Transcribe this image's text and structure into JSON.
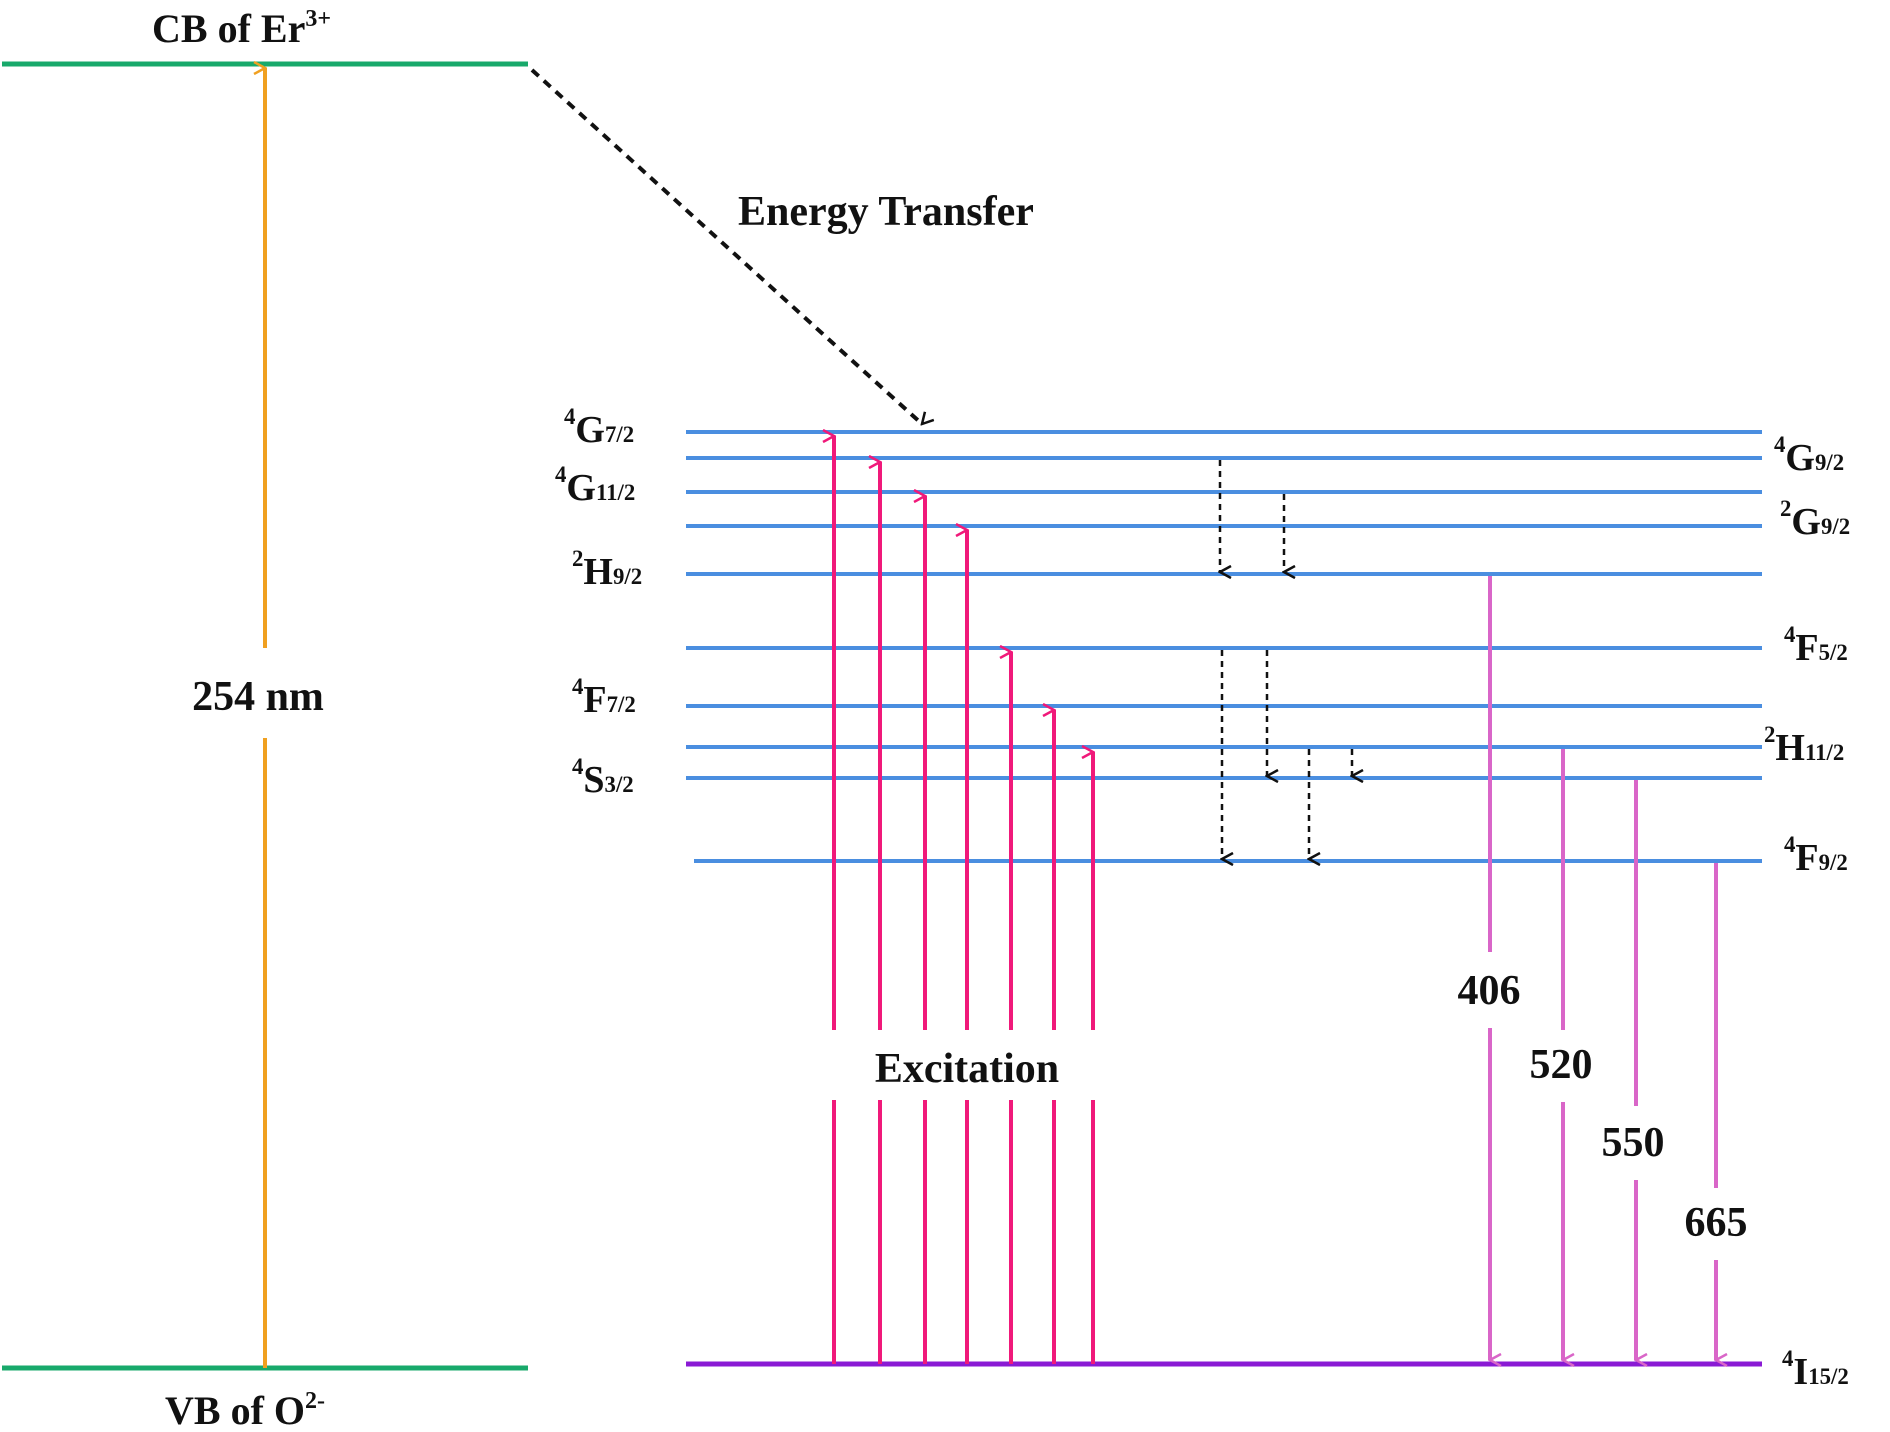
{
  "colors": {
    "band": "#18a96b",
    "band_excitation": "#f0a020",
    "level": "#4a8ee0",
    "ground": "#8a1ad4",
    "excitation": "#f0197a",
    "emission": "#d966c8",
    "dotted": "#111111"
  },
  "bands": {
    "cb": {
      "prefix": "CB of Er",
      "sup": "3+"
    },
    "vb": {
      "prefix": "VB of O",
      "sup": "2-"
    },
    "excitation_label": "254 nm"
  },
  "energy_transfer_label": "Energy Transfer",
  "excitation_label": "Excitation",
  "levels": {
    "g72": {
      "pre": "4",
      "main": "G",
      "sub": "7/2"
    },
    "g92": {
      "pre": "4",
      "main": "G",
      "sub": "9/2"
    },
    "g112": {
      "pre": "4",
      "main": "G",
      "sub": "11/2"
    },
    "g92b": {
      "pre": "2",
      "main": "G",
      "sub": "9/2"
    },
    "h92": {
      "pre": "2",
      "main": "H",
      "sub": "9/2"
    },
    "f52": {
      "pre": "4",
      "main": "F",
      "sub": "5/2"
    },
    "f72": {
      "pre": "4",
      "main": "F",
      "sub": "7/2"
    },
    "h112": {
      "pre": "2",
      "main": "H",
      "sub": "11/2"
    },
    "s32": {
      "pre": "4",
      "main": "S",
      "sub": "3/2"
    },
    "f92": {
      "pre": "4",
      "main": "F",
      "sub": "9/2"
    },
    "i152": {
      "pre": "4",
      "main": "I",
      "sub": "15/2"
    }
  },
  "emissions": [
    "406",
    "520",
    "550",
    "665"
  ]
}
